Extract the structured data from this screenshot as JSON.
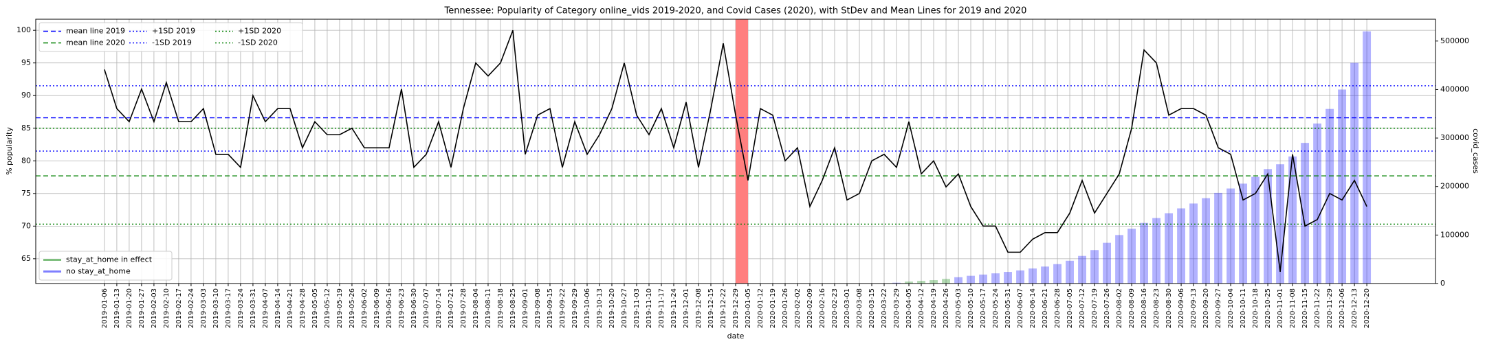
{
  "chart_data": {
    "type": "line",
    "title": "Tennessee: Popularity of Category online_vids 2019-2020, and Covid Cases (2020), with StDev and Mean Lines for 2019 and 2020",
    "xlabel": "date",
    "ylabel": "% popularity",
    "y2label": "covid_cases",
    "x": [
      "2019-01-06",
      "2019-01-13",
      "2019-01-20",
      "2019-01-27",
      "2019-02-03",
      "2019-02-10",
      "2019-02-17",
      "2019-02-24",
      "2019-03-03",
      "2019-03-10",
      "2019-03-17",
      "2019-03-24",
      "2019-03-31",
      "2019-04-07",
      "2019-04-14",
      "2019-04-21",
      "2019-04-28",
      "2019-05-05",
      "2019-05-12",
      "2019-05-19",
      "2019-05-26",
      "2019-06-02",
      "2019-06-09",
      "2019-06-16",
      "2019-06-23",
      "2019-06-30",
      "2019-07-07",
      "2019-07-14",
      "2019-07-21",
      "2019-07-28",
      "2019-08-04",
      "2019-08-11",
      "2019-08-18",
      "2019-08-25",
      "2019-09-01",
      "2019-09-08",
      "2019-09-15",
      "2019-09-22",
      "2019-09-29",
      "2019-10-06",
      "2019-10-13",
      "2019-10-20",
      "2019-10-27",
      "2019-11-03",
      "2019-11-10",
      "2019-11-17",
      "2019-11-24",
      "2019-12-01",
      "2019-12-08",
      "2019-12-15",
      "2019-12-22",
      "2019-12-29",
      "2020-01-05",
      "2020-01-12",
      "2020-01-19",
      "2020-01-26",
      "2020-02-02",
      "2020-02-09",
      "2020-02-16",
      "2020-02-23",
      "2020-03-01",
      "2020-03-08",
      "2020-03-15",
      "2020-03-22",
      "2020-03-29",
      "2020-04-05",
      "2020-04-12",
      "2020-04-19",
      "2020-04-26",
      "2020-05-03",
      "2020-05-10",
      "2020-05-17",
      "2020-05-24",
      "2020-05-31",
      "2020-06-07",
      "2020-06-14",
      "2020-06-21",
      "2020-06-28",
      "2020-07-05",
      "2020-07-12",
      "2020-07-19",
      "2020-07-26",
      "2020-08-02",
      "2020-08-09",
      "2020-08-16",
      "2020-08-23",
      "2020-08-30",
      "2020-09-06",
      "2020-09-13",
      "2020-09-20",
      "2020-09-27",
      "2020-10-04",
      "2020-10-11",
      "2020-10-18",
      "2020-10-25",
      "2020-11-01",
      "2020-11-08",
      "2020-11-15",
      "2020-11-22",
      "2020-11-29",
      "2020-12-06",
      "2020-12-13",
      "2020-12-20"
    ],
    "values": [
      94,
      88,
      86,
      91,
      86,
      92,
      86,
      86,
      88,
      81,
      81,
      79,
      90,
      86,
      88,
      88,
      82,
      86,
      84,
      84,
      85,
      82,
      82,
      82,
      91,
      79,
      81,
      86,
      79,
      88,
      95,
      93,
      95,
      100,
      81,
      87,
      88,
      79,
      86,
      81,
      84,
      88,
      95,
      87,
      84,
      88,
      82,
      89,
      79,
      88,
      98,
      87,
      77,
      88,
      87,
      80,
      82,
      73,
      77,
      82,
      74,
      75,
      80,
      81,
      79,
      86,
      78,
      80,
      76,
      78,
      73,
      70,
      70,
      66,
      66,
      68,
      69,
      69,
      72,
      77,
      72,
      75,
      78,
      85,
      97,
      95,
      87,
      88,
      88,
      87,
      82,
      81,
      74,
      75,
      78,
      63,
      81,
      70,
      71,
      75,
      74,
      77,
      73
    ],
    "color": "#000000",
    "bars": [
      {
        "name": "stay_at_home in effect",
        "color": "#008000",
        "axis": "y2",
        "values": [
          null,
          null,
          null,
          null,
          null,
          null,
          null,
          null,
          null,
          null,
          null,
          null,
          null,
          null,
          null,
          null,
          null,
          null,
          null,
          null,
          null,
          null,
          null,
          null,
          null,
          null,
          null,
          null,
          null,
          null,
          null,
          null,
          null,
          null,
          null,
          null,
          null,
          null,
          null,
          null,
          null,
          null,
          null,
          null,
          null,
          null,
          null,
          null,
          null,
          null,
          null,
          null,
          null,
          null,
          null,
          null,
          null,
          null,
          null,
          null,
          null,
          null,
          null,
          null,
          null,
          4000,
          5500,
          7000,
          9500,
          null,
          null,
          null,
          null,
          null,
          null,
          null,
          null,
          null,
          null,
          null,
          null,
          null,
          null,
          null,
          null,
          null,
          null,
          null,
          null,
          null,
          null,
          null,
          null,
          null,
          null,
          null,
          null,
          null,
          null,
          null,
          null,
          null,
          null
        ]
      },
      {
        "name": "no stay_at_home",
        "color": "#0000ff",
        "axis": "y2",
        "values": [
          null,
          null,
          null,
          null,
          null,
          null,
          null,
          null,
          null,
          null,
          null,
          null,
          null,
          null,
          null,
          null,
          null,
          null,
          null,
          null,
          null,
          null,
          null,
          null,
          null,
          null,
          null,
          null,
          null,
          null,
          null,
          null,
          null,
          null,
          null,
          null,
          null,
          null,
          null,
          null,
          null,
          null,
          null,
          null,
          null,
          null,
          null,
          null,
          null,
          null,
          null,
          null,
          null,
          null,
          null,
          null,
          null,
          null,
          null,
          null,
          null,
          null,
          100,
          600,
          1800,
          null,
          null,
          null,
          null,
          13000,
          16000,
          18500,
          21000,
          24000,
          27000,
          31000,
          35000,
          40000,
          47000,
          57000,
          69000,
          84000,
          100000,
          113000,
          125000,
          135000,
          145000,
          155000,
          165000,
          176000,
          187000,
          196000,
          206000,
          220000,
          236000,
          246000,
          262000,
          290000,
          330000,
          360000,
          400000,
          455000,
          520000
        ]
      }
    ],
    "bar_legend": "lower left",
    "hlines": [
      {
        "name": "mean line 2019",
        "value": 86.6,
        "color": "#0000ff",
        "style": "dashed"
      },
      {
        "name": "mean line 2020",
        "value": 77.7,
        "color": "#008000",
        "style": "dashed"
      },
      {
        "name": "+1SD 2019",
        "value": 91.5,
        "color": "#0000ff",
        "style": "dotted"
      },
      {
        "name": "-1SD 2019",
        "value": 81.5,
        "color": "#0000ff",
        "style": "dotted"
      },
      {
        "name": "+1SD 2020",
        "value": 85.0,
        "color": "#008000",
        "style": "dotted"
      },
      {
        "name": "-1SD 2020",
        "value": 70.3,
        "color": "#008000",
        "style": "dotted"
      }
    ],
    "legend": "upper left",
    "highlight": {
      "from": "2019-12-29",
      "to": "2020-01-05",
      "color": "#ff7f7f"
    },
    "ylim": [
      61.2,
      101.7
    ],
    "yticks": [
      65,
      70,
      75,
      80,
      85,
      90,
      95,
      100
    ],
    "y2lim": [
      0,
      545000
    ],
    "y2ticks": [
      0,
      100000,
      200000,
      300000,
      400000,
      500000
    ],
    "grid": true
  }
}
